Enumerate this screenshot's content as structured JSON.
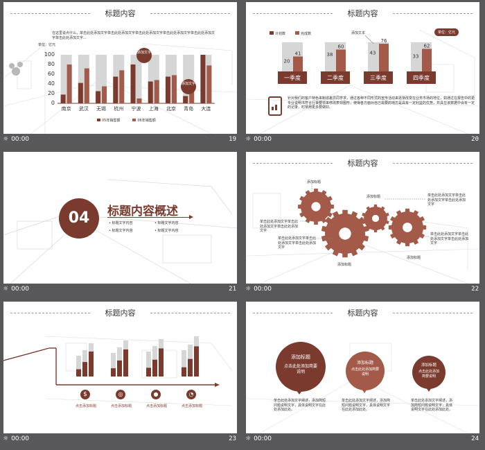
{
  "colors": {
    "brown": "#7a3b2e",
    "brown_light": "#a35a48",
    "grey_bar": "#d6d6d6",
    "frame_bg": "#58585a"
  },
  "slides": [
    {
      "number": "19",
      "time": "00:00",
      "title": "标题内容",
      "intro": "在这里说点什么，单击此处添加文字单击此处添加文字单击此处添加文字单击此处添加文字单击此处添加文字单击此处添加文字...",
      "unit": "单位：亿元",
      "bubbles": [
        "添加文字",
        "添加文字"
      ],
      "legend": [
        "05年销售额",
        "06年销售额"
      ],
      "chart_data": {
        "type": "bar",
        "categories": [
          "南京",
          "武汉",
          "无锡",
          "杭州",
          "宁波",
          "上海",
          "北京",
          "青岛",
          "大连"
        ],
        "ylim": [
          0,
          100
        ],
        "yticks": [
          0,
          20,
          40,
          60,
          80,
          100
        ],
        "series": [
          {
            "name": "05年销售额",
            "values": [
              18,
              42,
              25,
              55,
              80,
              45,
              55,
              15,
              100
            ]
          },
          {
            "name": "06年销售额",
            "values": [
              80,
              72,
              35,
              68,
              10,
              48,
              58,
              25,
              78
            ]
          }
        ]
      }
    },
    {
      "number": "20",
      "time": "00:00",
      "title": "标题内容",
      "legend": [
        "计划数",
        "完成数"
      ],
      "callout": "添加文本",
      "unit_badge": "单位：亿元",
      "quarters": [
        "一季度",
        "二季度",
        "三季度",
        "四季度"
      ],
      "plan": [
        20,
        38,
        43,
        33
      ],
      "done": [
        41,
        60,
        76,
        62
      ],
      "desc": "针对我们的客户特色来制造差异同学求，通过各种不同形式的宣传活动来逐渐改变在业务市场的地位，如通过在报告中的更专业说明书符合行事要领来修改表现图形，使得各方面对自己需要的地方是具有一定利益的优势，并具在该数据中会有一定的记录，时常用更多要做好。"
    },
    {
      "number": "21",
      "time": "00:00",
      "section_num": "04",
      "section_title": "标题内容概述",
      "items": [
        "标题文字内容",
        "标题文字内容",
        "标题文字内容",
        "标题文字内容"
      ]
    },
    {
      "number": "22",
      "time": "00:00",
      "title": "标题内容",
      "gear_labels": [
        "添加标题",
        "添加标题",
        "添加标题",
        "添加标题"
      ],
      "side_texts": [
        "单击此处添加文字单击此处添加文字单击此处添加文字",
        "单击此处添加文字单击此处添加文字单击此处添加文字",
        "单击此处添加文字单击此处添加文字单击此处添加文字",
        "单击此处添加文字单击此处添加文字单击此处添加文字"
      ]
    },
    {
      "number": "23",
      "time": "00:00",
      "title": "标题内容",
      "labels": [
        "点击添加标题",
        "点击添加标题",
        "点击添加标题",
        "点击添加标题"
      ],
      "icons": [
        "dollar-icon",
        "coins-icon",
        "bag-icon",
        "chart-icon"
      ]
    },
    {
      "number": "24",
      "time": "00:00",
      "title": "标题内容",
      "bubbles": [
        {
          "title": "添加标题",
          "sub": "点击此处添加简要说明",
          "desc": "单击此处添加文字阐述，添加简短问题说明文字，具体说明文字在此处添加此处。"
        },
        {
          "title": "添加标题",
          "sub": "点击此处添加简要说明",
          "desc": "单击此处添加文字阐述，添加简短问题说明文字，具体说明文字在此处添加此处。"
        },
        {
          "title": "添加标题",
          "sub": "点击此处添加简要说明",
          "desc": "单击此处添加文字阐述，添加简短问题说明文字，具体说明文字在此处添加此处。"
        }
      ]
    }
  ]
}
